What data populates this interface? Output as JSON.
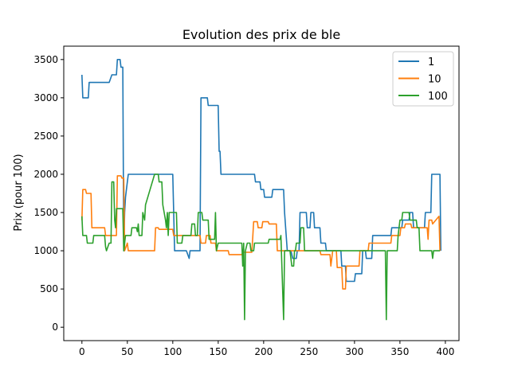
{
  "chart_data": {
    "type": "line",
    "title": "Evolution des prix de ble",
    "xlabel": "",
    "ylabel": "Prix (pour 100)",
    "xlim": [
      -20,
      415
    ],
    "ylim": [
      -175,
      3675
    ],
    "xticks": [
      0,
      50,
      100,
      150,
      200,
      250,
      300,
      350,
      400
    ],
    "yticks": [
      0,
      500,
      1000,
      1500,
      2000,
      2500,
      3000,
      3500
    ],
    "grid": false,
    "legend": "top-right",
    "series": [
      {
        "name": "1",
        "color": "#1f77b4",
        "points": [
          [
            0,
            3300
          ],
          [
            1,
            3000
          ],
          [
            7,
            3000
          ],
          [
            8,
            3200
          ],
          [
            30,
            3200
          ],
          [
            33,
            3300
          ],
          [
            38,
            3300
          ],
          [
            39,
            3500
          ],
          [
            42,
            3500
          ],
          [
            43,
            3400
          ],
          [
            45,
            3400
          ],
          [
            46,
            1000
          ],
          [
            47,
            1500
          ],
          [
            48,
            1700
          ],
          [
            50,
            1900
          ],
          [
            51,
            2000
          ],
          [
            100,
            2000
          ],
          [
            102,
            1000
          ],
          [
            115,
            1000
          ],
          [
            118,
            900
          ],
          [
            119,
            1000
          ],
          [
            130,
            1000
          ],
          [
            131,
            3000
          ],
          [
            138,
            3000
          ],
          [
            139,
            2900
          ],
          [
            150,
            2900
          ],
          [
            151,
            2300
          ],
          [
            152,
            2300
          ],
          [
            153,
            2000
          ],
          [
            190,
            2000
          ],
          [
            191,
            1900
          ],
          [
            196,
            1900
          ],
          [
            197,
            1800
          ],
          [
            200,
            1800
          ],
          [
            201,
            1700
          ],
          [
            209,
            1700
          ],
          [
            210,
            1800
          ],
          [
            222,
            1800
          ],
          [
            223,
            1500
          ],
          [
            226,
            1000
          ],
          [
            230,
            1000
          ],
          [
            232,
            900
          ],
          [
            236,
            900
          ],
          [
            237,
            1000
          ],
          [
            239,
            1000
          ],
          [
            240,
            1500
          ],
          [
            247,
            1500
          ],
          [
            248,
            1300
          ],
          [
            251,
            1300
          ],
          [
            252,
            1500
          ],
          [
            255,
            1500
          ],
          [
            256,
            1300
          ],
          [
            262,
            1300
          ],
          [
            263,
            1100
          ],
          [
            268,
            1100
          ],
          [
            269,
            1000
          ],
          [
            285,
            1000
          ],
          [
            286,
            800
          ],
          [
            290,
            800
          ],
          [
            291,
            600
          ],
          [
            300,
            600
          ],
          [
            301,
            700
          ],
          [
            308,
            700
          ],
          [
            309,
            1000
          ],
          [
            312,
            1000
          ],
          [
            313,
            900
          ],
          [
            319,
            900
          ],
          [
            320,
            1200
          ],
          [
            340,
            1200
          ],
          [
            341,
            1300
          ],
          [
            352,
            1300
          ],
          [
            353,
            1400
          ],
          [
            360,
            1400
          ],
          [
            361,
            1500
          ],
          [
            364,
            1500
          ],
          [
            365,
            1300
          ],
          [
            377,
            1300
          ],
          [
            378,
            1500
          ],
          [
            384,
            1500
          ],
          [
            385,
            2000
          ],
          [
            394,
            2000
          ],
          [
            395,
            1000
          ]
        ]
      },
      {
        "name": "10",
        "color": "#ff7f0e",
        "points": [
          [
            0,
            1400
          ],
          [
            1,
            1800
          ],
          [
            4,
            1800
          ],
          [
            5,
            1750
          ],
          [
            10,
            1750
          ],
          [
            11,
            1300
          ],
          [
            25,
            1300
          ],
          [
            26,
            1200
          ],
          [
            38,
            1200
          ],
          [
            39,
            1980
          ],
          [
            43,
            1980
          ],
          [
            44,
            1950
          ],
          [
            46,
            1950
          ],
          [
            47,
            1000
          ],
          [
            50,
            1100
          ],
          [
            51,
            1000
          ],
          [
            80,
            1000
          ],
          [
            81,
            1300
          ],
          [
            84,
            1300
          ],
          [
            85,
            1280
          ],
          [
            100,
            1280
          ],
          [
            101,
            1200
          ],
          [
            130,
            1200
          ],
          [
            131,
            1100
          ],
          [
            136,
            1100
          ],
          [
            137,
            1200
          ],
          [
            141,
            1200
          ],
          [
            142,
            1100
          ],
          [
            147,
            1100
          ],
          [
            148,
            1000
          ],
          [
            161,
            1000
          ],
          [
            162,
            950
          ],
          [
            176,
            950
          ],
          [
            177,
            980
          ],
          [
            187,
            980
          ],
          [
            188,
            1180
          ],
          [
            189,
            1380
          ],
          [
            193,
            1380
          ],
          [
            194,
            1300
          ],
          [
            198,
            1300
          ],
          [
            199,
            1380
          ],
          [
            205,
            1380
          ],
          [
            206,
            1350
          ],
          [
            214,
            1350
          ],
          [
            215,
            1000
          ],
          [
            262,
            1000
          ],
          [
            263,
            950
          ],
          [
            273,
            950
          ],
          [
            274,
            800
          ],
          [
            276,
            1000
          ],
          [
            280,
            1000
          ],
          [
            281,
            780
          ],
          [
            286,
            780
          ],
          [
            287,
            500
          ],
          [
            290,
            500
          ],
          [
            291,
            800
          ],
          [
            305,
            800
          ],
          [
            306,
            1000
          ],
          [
            315,
            1000
          ],
          [
            316,
            1100
          ],
          [
            340,
            1100
          ],
          [
            341,
            1200
          ],
          [
            350,
            1200
          ],
          [
            351,
            1300
          ],
          [
            355,
            1300
          ],
          [
            356,
            1350
          ],
          [
            362,
            1350
          ],
          [
            363,
            1300
          ],
          [
            380,
            1300
          ],
          [
            381,
            1150
          ],
          [
            382,
            1400
          ],
          [
            385,
            1400
          ],
          [
            386,
            1350
          ],
          [
            393,
            1450
          ],
          [
            394,
            1000
          ]
        ]
      },
      {
        "name": "100",
        "color": "#2ca02c",
        "points": [
          [
            0,
            1450
          ],
          [
            1,
            1200
          ],
          [
            5,
            1200
          ],
          [
            6,
            1100
          ],
          [
            12,
            1100
          ],
          [
            13,
            1200
          ],
          [
            25,
            1200
          ],
          [
            26,
            1050
          ],
          [
            27,
            1000
          ],
          [
            30,
            1100
          ],
          [
            32,
            1100
          ],
          [
            33,
            1900
          ],
          [
            35,
            1900
          ],
          [
            36,
            1400
          ],
          [
            37,
            1300
          ],
          [
            38,
            1550
          ],
          [
            45,
            1550
          ],
          [
            46,
            1000
          ],
          [
            48,
            1200
          ],
          [
            54,
            1200
          ],
          [
            55,
            1300
          ],
          [
            60,
            1300
          ],
          [
            61,
            1250
          ],
          [
            62,
            1350
          ],
          [
            63,
            1200
          ],
          [
            66,
            1200
          ],
          [
            67,
            1500
          ],
          [
            69,
            1400
          ],
          [
            70,
            1600
          ],
          [
            75,
            1800
          ],
          [
            80,
            2000
          ],
          [
            84,
            2000
          ],
          [
            85,
            1900
          ],
          [
            88,
            1900
          ],
          [
            89,
            1600
          ],
          [
            92,
            1400
          ],
          [
            93,
            1300
          ],
          [
            94,
            1500
          ],
          [
            95,
            1200
          ],
          [
            96,
            1500
          ],
          [
            104,
            1500
          ],
          [
            105,
            1100
          ],
          [
            110,
            1100
          ],
          [
            111,
            1200
          ],
          [
            120,
            1200
          ],
          [
            121,
            1350
          ],
          [
            124,
            1350
          ],
          [
            125,
            1200
          ],
          [
            127,
            1200
          ],
          [
            128,
            1500
          ],
          [
            132,
            1500
          ],
          [
            133,
            1400
          ],
          [
            139,
            1400
          ],
          [
            140,
            1150
          ],
          [
            146,
            1150
          ],
          [
            147,
            1500
          ],
          [
            148,
            1000
          ],
          [
            150,
            1100
          ],
          [
            176,
            1100
          ],
          [
            177,
            800
          ],
          [
            178,
            1100
          ],
          [
            179,
            100
          ],
          [
            180,
            1000
          ],
          [
            182,
            1100
          ],
          [
            185,
            1100
          ],
          [
            186,
            1000
          ],
          [
            189,
            1000
          ],
          [
            190,
            1100
          ],
          [
            205,
            1100
          ],
          [
            206,
            1150
          ],
          [
            218,
            1150
          ],
          [
            219,
            1200
          ],
          [
            222,
            100
          ],
          [
            223,
            1000
          ],
          [
            229,
            1000
          ],
          [
            231,
            800
          ],
          [
            233,
            800
          ],
          [
            234,
            1000
          ],
          [
            235,
            1000
          ],
          [
            236,
            1100
          ],
          [
            240,
            1100
          ],
          [
            241,
            1300
          ],
          [
            244,
            1300
          ],
          [
            245,
            1000
          ],
          [
            334,
            1000
          ],
          [
            335,
            100
          ],
          [
            336,
            1000
          ],
          [
            347,
            1000
          ],
          [
            348,
            1200
          ],
          [
            350,
            1400
          ],
          [
            352,
            1400
          ],
          [
            353,
            1500
          ],
          [
            360,
            1500
          ],
          [
            361,
            1400
          ],
          [
            368,
            1400
          ],
          [
            369,
            1300
          ],
          [
            371,
            1300
          ],
          [
            372,
            1000
          ],
          [
            385,
            1000
          ],
          [
            386,
            900
          ],
          [
            387,
            1000
          ],
          [
            394,
            1000
          ]
        ]
      }
    ]
  }
}
